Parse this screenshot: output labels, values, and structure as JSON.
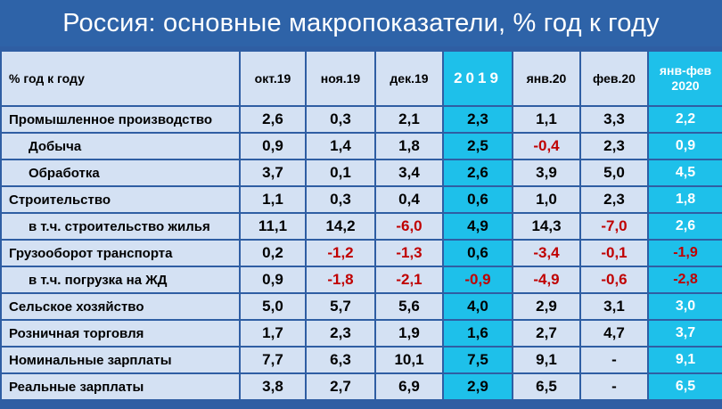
{
  "title": "Россия: основные макропоказатели, % год к году",
  "header": {
    "label": "% год к году",
    "columns": [
      "окт.19",
      "ноя.19",
      "дек.19",
      "2019",
      "янв.20",
      "фев.20",
      "янв-фев 2020"
    ]
  },
  "rows": [
    {
      "label": "Промышленное производство",
      "indent": false,
      "values": [
        "2,6",
        "0,3",
        "2,1",
        "2,3",
        "1,1",
        "3,3",
        "2,2"
      ]
    },
    {
      "label": "Добыча",
      "indent": true,
      "values": [
        "0,9",
        "1,4",
        "1,8",
        "2,5",
        "-0,4",
        "2,3",
        "0,9"
      ]
    },
    {
      "label": "Обработка",
      "indent": true,
      "values": [
        "3,7",
        "0,1",
        "3,4",
        "2,6",
        "3,9",
        "5,0",
        "4,5"
      ]
    },
    {
      "label": "Строительство",
      "indent": false,
      "values": [
        "1,1",
        "0,3",
        "0,4",
        "0,6",
        "1,0",
        "2,3",
        "1,8"
      ]
    },
    {
      "label": "в т.ч. строительство жилья",
      "indent": true,
      "values": [
        "11,1",
        "14,2",
        "-6,0",
        "4,9",
        "14,3",
        "-7,0",
        "2,6"
      ]
    },
    {
      "label": "Грузооборот транспорта",
      "indent": false,
      "values": [
        "0,2",
        "-1,2",
        "-1,3",
        "0,6",
        "-3,4",
        "-0,1",
        "-1,9"
      ]
    },
    {
      "label": "в т.ч. погрузка на ЖД",
      "indent": true,
      "values": [
        "0,9",
        "-1,8",
        "-2,1",
        "-0,9",
        "-4,9",
        "-0,6",
        "-2,8"
      ]
    },
    {
      "label": "Сельское хозяйство",
      "indent": false,
      "values": [
        "5,0",
        "5,7",
        "5,6",
        "4,0",
        "2,9",
        "3,1",
        "3,0"
      ]
    },
    {
      "label": "Розничная торговля",
      "indent": false,
      "values": [
        "1,7",
        "2,3",
        "1,9",
        "1,6",
        "2,7",
        "4,7",
        "3,7"
      ]
    },
    {
      "label": "Номинальные зарплаты",
      "indent": false,
      "values": [
        "7,7",
        "6,3",
        "10,1",
        "7,5",
        "9,1",
        "-",
        "9,1"
      ]
    },
    {
      "label": "Реальные зарплаты",
      "indent": false,
      "values": [
        "3,8",
        "2,7",
        "6,9",
        "2,9",
        "6,5",
        "-",
        "6,5"
      ]
    }
  ],
  "colors": {
    "background": "#2f5ea3",
    "cell": "#d4e1f3",
    "highlight": "#1ec0ea",
    "negative": "#c00000"
  }
}
